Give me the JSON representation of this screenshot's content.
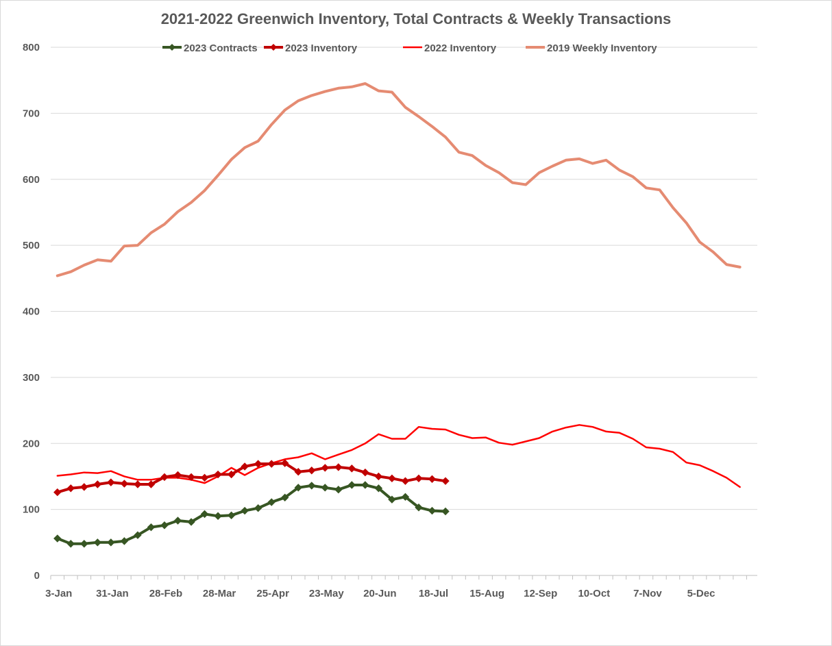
{
  "chart_data": {
    "type": "line",
    "title": "2021-2022 Greenwich Inventory, Total Contracts & Weekly Transactions",
    "xlabel": "",
    "ylabel": "",
    "ylim": [
      0,
      800
    ],
    "y_ticks": [
      0,
      100,
      200,
      300,
      400,
      500,
      600,
      700,
      800
    ],
    "x_ticks": [
      {
        "index": 0,
        "label": "3-Jan"
      },
      {
        "index": 4,
        "label": "31-Jan"
      },
      {
        "index": 8,
        "label": "28-Feb"
      },
      {
        "index": 12,
        "label": "28-Mar"
      },
      {
        "index": 16,
        "label": "25-Apr"
      },
      {
        "index": 20,
        "label": "23-May"
      },
      {
        "index": 24,
        "label": "20-Jun"
      },
      {
        "index": 28,
        "label": "18-Jul"
      },
      {
        "index": 32,
        "label": "15-Aug"
      },
      {
        "index": 36,
        "label": "12-Sep"
      },
      {
        "index": 40,
        "label": "10-Oct"
      },
      {
        "index": 44,
        "label": "7-Nov"
      },
      {
        "index": 48,
        "label": "5-Dec"
      }
    ],
    "x_count": 53,
    "grid": "horizontal",
    "legend_position": "top",
    "series": [
      {
        "name": "2023 Contracts",
        "color": "#375623",
        "markers": true,
        "width": 4,
        "values": [
          56,
          48,
          48,
          50,
          50,
          52,
          61,
          73,
          76,
          83,
          81,
          93,
          90,
          91,
          98,
          102,
          111,
          118,
          133,
          136,
          133,
          130,
          137,
          137,
          132,
          115,
          119,
          103,
          98,
          97
        ]
      },
      {
        "name": "2023 Inventory",
        "color": "#c00000",
        "markers": true,
        "width": 4,
        "values": [
          126,
          132,
          134,
          138,
          141,
          139,
          138,
          138,
          149,
          152,
          149,
          148,
          153,
          153,
          165,
          169,
          169,
          170,
          157,
          159,
          163,
          164,
          162,
          156,
          150,
          147,
          143,
          147,
          146,
          143
        ]
      },
      {
        "name": "2022 Inventory",
        "color": "#ff0000",
        "markers": false,
        "width": 2.5,
        "values": [
          151,
          153,
          156,
          155,
          158,
          150,
          145,
          145,
          148,
          148,
          145,
          140,
          150,
          163,
          152,
          163,
          170,
          176,
          179,
          185,
          176,
          183,
          190,
          200,
          214,
          207,
          207,
          225,
          222,
          221,
          213,
          208,
          209,
          201,
          198,
          203,
          208,
          218,
          224,
          228,
          225,
          218,
          216,
          207,
          194,
          192,
          187,
          171,
          167,
          158,
          148,
          134
        ]
      },
      {
        "name": "2019 Weekly Inventory",
        "color": "#e58b72",
        "markers": false,
        "width": 4,
        "values": [
          454,
          460,
          470,
          478,
          476,
          499,
          500,
          519,
          532,
          551,
          565,
          583,
          606,
          630,
          648,
          658,
          683,
          705,
          719,
          727,
          733,
          738,
          740,
          745,
          734,
          732,
          709,
          695,
          680,
          664,
          641,
          636,
          621,
          610,
          595,
          592,
          610,
          620,
          629,
          631,
          624,
          629,
          614,
          604,
          587,
          584,
          557,
          534,
          505,
          490,
          471,
          467
        ]
      }
    ]
  }
}
